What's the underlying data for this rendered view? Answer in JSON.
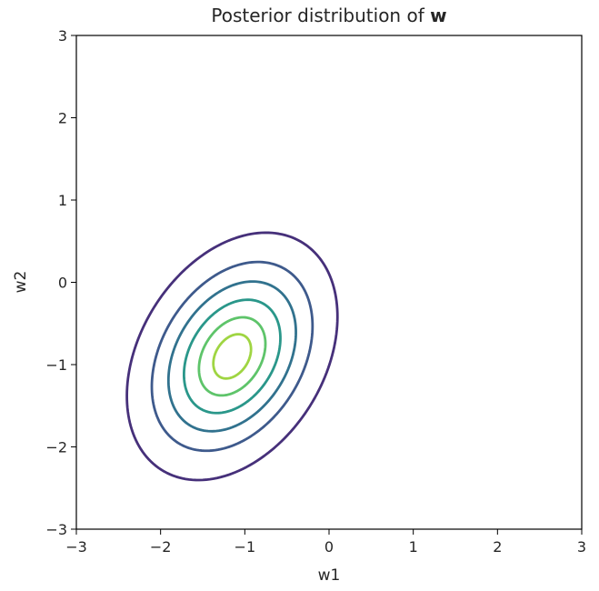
{
  "chart_data": {
    "type": "contour",
    "title": "Posterior distribution of ",
    "title_bold": "w",
    "xlabel": "w1",
    "ylabel": "w2",
    "xlim": [
      -3,
      3
    ],
    "ylim": [
      -3,
      3
    ],
    "xticks": [
      -3,
      -2,
      -1,
      0,
      1,
      2,
      3
    ],
    "yticks": [
      -3,
      -2,
      -1,
      0,
      1,
      2,
      3
    ],
    "tick_labels_x": [
      "−3",
      "−2",
      "−1",
      "0",
      "1",
      "2",
      "3"
    ],
    "tick_labels_y": [
      "−3",
      "−2",
      "−1",
      "0",
      "1",
      "2",
      "3"
    ],
    "grid": false,
    "distribution": {
      "mean": [
        -1.15,
        -0.9
      ],
      "principal_axis_angle_deg": -120,
      "sigma_major": 0.85,
      "sigma_minor": 0.58
    },
    "levels": [
      {
        "mahalanobis_radius": 1.9,
        "color": "#46307a"
      },
      {
        "mahalanobis_radius": 1.45,
        "color": "#3e5a8c"
      },
      {
        "mahalanobis_radius": 1.15,
        "color": "#31728e"
      },
      {
        "mahalanobis_radius": 0.87,
        "color": "#2a978a"
      },
      {
        "mahalanobis_radius": 0.6,
        "color": "#5ec46a"
      },
      {
        "mahalanobis_radius": 0.34,
        "color": "#9fd542"
      }
    ]
  }
}
